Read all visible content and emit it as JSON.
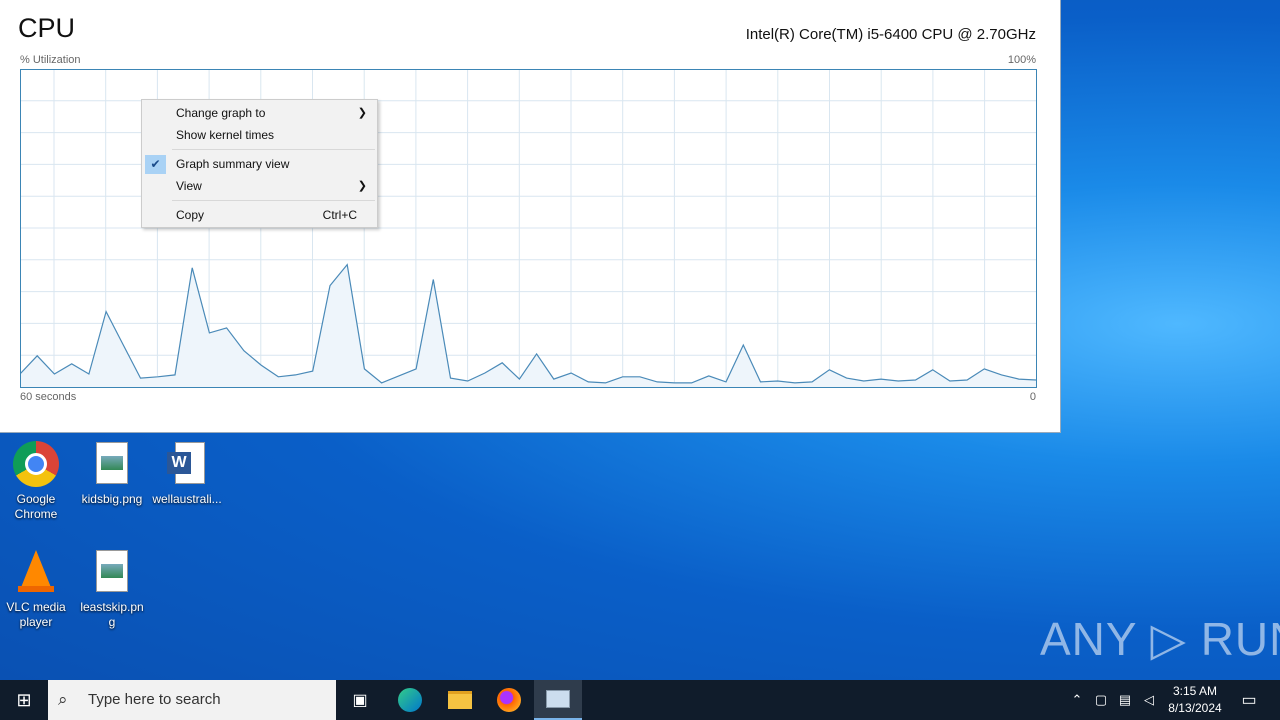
{
  "task_manager": {
    "title": "CPU",
    "cpu_name": "Intel(R) Core(TM) i5-6400 CPU @ 2.70GHz",
    "y_label": "% Utilization",
    "y_max_label": "100%",
    "x_left_label": "60 seconds",
    "x_right_label": "0"
  },
  "chart_data": {
    "type": "area",
    "ylim": [
      0,
      100
    ],
    "xlim": [
      60,
      0
    ],
    "grid": true,
    "line_color": "#4a8ab8",
    "fill_color": "#eef5fb",
    "values": [
      4.1,
      9.8,
      4.1,
      7.3,
      4.1,
      23.7,
      13.2,
      2.8,
      3.2,
      3.8,
      37.5,
      17,
      18.6,
      11.4,
      6.9,
      3.2,
      3.8,
      5,
      31.9,
      38.5,
      5.7,
      1.3,
      3.5,
      5.7,
      33.8,
      2.8,
      1.9,
      4.4,
      7.6,
      2.5,
      10.4,
      2.5,
      4.4,
      1.6,
      1.3,
      3.2,
      3.2,
      1.6,
      1.3,
      1.3,
      3.5,
      1.6,
      13.2,
      1.6,
      1.9,
      1.3,
      1.6,
      5.4,
      2.8,
      1.9,
      2.5,
      1.9,
      2.2,
      5.4,
      1.9,
      2.2,
      5.7,
      3.8,
      2.5,
      2.2
    ]
  },
  "context_menu": {
    "items": [
      {
        "label": "Change graph to",
        "submenu": true
      },
      {
        "label": "Show kernel times"
      },
      {
        "label": "Graph summary view",
        "checked": true
      },
      {
        "label": "View",
        "submenu": true
      },
      {
        "label": "Copy",
        "shortcut": "Ctrl+C"
      }
    ]
  },
  "desktop": {
    "icons": [
      {
        "label": "Google Chrome"
      },
      {
        "label": "kidsbig.png"
      },
      {
        "label": "wellaustrali..."
      },
      {
        "label": "VLC media player"
      },
      {
        "label": "leastskip.png"
      }
    ],
    "watermark": "ANY RUN"
  },
  "taskbar": {
    "search_placeholder": "Type here to search",
    "time": "3:15 AM",
    "date": "8/13/2024"
  }
}
